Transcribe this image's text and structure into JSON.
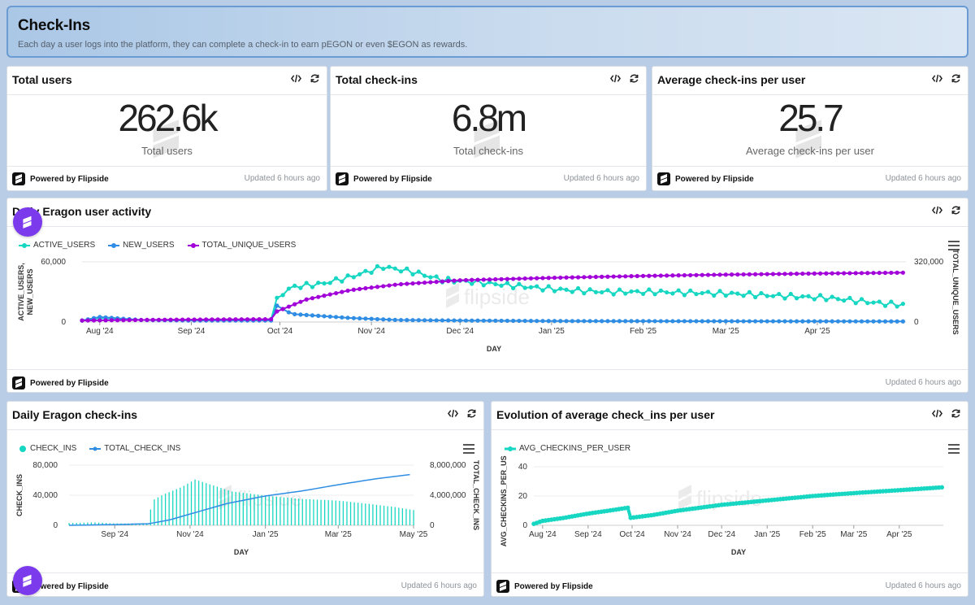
{
  "header": {
    "title": "Check-Ins",
    "subtitle": "Each day a user logs into the platform, they can complete a check-in to earn pEGON or even $EGON as rewards."
  },
  "footer": {
    "powered": "Powered by Flipside",
    "updated": "Updated 6 hours ago"
  },
  "stat_cards": [
    {
      "title": "Total users",
      "value": "262.6k",
      "label": "Total users"
    },
    {
      "title": "Total check-ins",
      "value": "6.8m",
      "label": "Total check-ins"
    },
    {
      "title": "Average check-ins per user",
      "value": "25.7",
      "label": "Average check-ins per user"
    }
  ],
  "activity": {
    "title": "Daily Eragon user activity"
  },
  "checkins": {
    "title": "Daily Eragon check-ins"
  },
  "avg": {
    "title": "Evolution of average check_ins per user"
  },
  "watermark": "flipside",
  "colors": {
    "teal": "#17d7c2",
    "blue": "#2f8de4",
    "purple": "#a100d9",
    "fab": "#7c3aed"
  },
  "chart_data": [
    {
      "type": "line",
      "title": "Daily Eragon user activity",
      "xlabel": "DAY",
      "ylabel": "ACTIVE_USERS, NEW_USERS",
      "ylabel_right": "TOTAL_UNIQUE_USERS",
      "x_ticks": [
        "Aug '24",
        "Sep '24",
        "Oct '24",
        "Nov '24",
        "Dec '24",
        "Jan '25",
        "Feb '25",
        "Mar '25",
        "Apr '25"
      ],
      "y_ticks_left": [
        "60,000",
        "0"
      ],
      "y_ticks_right": [
        "320,000",
        "0"
      ],
      "ylim_left": [
        0,
        60000
      ],
      "ylim_right": [
        0,
        320000
      ],
      "legend_position": "top-left",
      "series": [
        {
          "name": "ACTIVE_USERS",
          "axis": "left",
          "color": "#17d7c2",
          "x": [
            "2024-07-26",
            "2024-08-01",
            "2024-08-15",
            "2024-09-01",
            "2024-09-15",
            "2024-09-28",
            "2024-09-29",
            "2024-10-05",
            "2024-10-15",
            "2024-10-25",
            "2024-11-05",
            "2024-11-15",
            "2024-11-25",
            "2024-12-05",
            "2024-12-20",
            "2025-01-05",
            "2025-01-20",
            "2025-02-05",
            "2025-02-20",
            "2025-03-05",
            "2025-03-20",
            "2025-04-05",
            "2025-04-15",
            "2025-04-25",
            "2025-05-01"
          ],
          "values": [
            1500,
            4000,
            2000,
            1800,
            1800,
            2500,
            22000,
            35000,
            38000,
            45000,
            55000,
            50000,
            42000,
            40000,
            36000,
            32000,
            30000,
            30000,
            29000,
            28000,
            26000,
            24000,
            21000,
            18000,
            17000
          ]
        },
        {
          "name": "NEW_USERS",
          "axis": "left",
          "color": "#2f8de4",
          "x": [
            "2024-07-26",
            "2024-08-01",
            "2024-08-15",
            "2024-09-01",
            "2024-09-28",
            "2024-09-29",
            "2024-10-05",
            "2024-10-15",
            "2024-10-25",
            "2024-11-10",
            "2024-12-01",
            "2025-01-01",
            "2025-03-01",
            "2025-05-01"
          ],
          "values": [
            1500,
            5000,
            2000,
            1500,
            1500,
            18000,
            8000,
            6000,
            4000,
            2000,
            1500,
            1000,
            800,
            600
          ]
        },
        {
          "name": "TOTAL_UNIQUE_USERS",
          "axis": "right",
          "color": "#a100d9",
          "x": [
            "2024-07-26",
            "2024-08-15",
            "2024-09-01",
            "2024-09-28",
            "2024-09-29",
            "2024-10-10",
            "2024-10-25",
            "2024-11-10",
            "2024-12-01",
            "2025-01-01",
            "2025-02-01",
            "2025-03-01",
            "2025-04-01",
            "2025-05-01"
          ],
          "values": [
            8000,
            11000,
            13000,
            15000,
            50000,
            120000,
            170000,
            200000,
            222000,
            235000,
            245000,
            252000,
            258000,
            262600
          ]
        }
      ]
    },
    {
      "type": "bar",
      "title": "Daily Eragon check-ins",
      "xlabel": "DAY",
      "ylabel": "CHECK_INS",
      "ylabel_right": "TOTAL_CHECK_INS",
      "x_ticks": [
        "Sep '24",
        "Nov '24",
        "Jan '25",
        "Mar '25",
        "May '25"
      ],
      "y_ticks_left": [
        "80,000",
        "40,000",
        "0"
      ],
      "y_ticks_right": [
        "8,000,000",
        "4,000,000",
        "0"
      ],
      "ylim_left": [
        0,
        80000
      ],
      "ylim_right": [
        0,
        8000000
      ],
      "legend_position": "top-left",
      "series": [
        {
          "name": "CHECK_INS",
          "axis": "left",
          "type": "bar",
          "color": "#17d7c2",
          "x": [
            "2024-07-26",
            "2024-08-15",
            "2024-09-01",
            "2024-09-15",
            "2024-09-28",
            "2024-10-01",
            "2024-10-10",
            "2024-10-25",
            "2024-11-05",
            "2024-11-20",
            "2024-12-05",
            "2024-12-25",
            "2025-01-10",
            "2025-02-01",
            "2025-03-01",
            "2025-03-25",
            "2025-04-15",
            "2025-05-01"
          ],
          "values": [
            3000,
            4000,
            2500,
            2500,
            3000,
            30000,
            38000,
            48000,
            58000,
            50000,
            42000,
            38000,
            35000,
            32000,
            30000,
            26000,
            22000,
            18000
          ]
        },
        {
          "name": "TOTAL_CHECK_INS",
          "axis": "right",
          "type": "line",
          "color": "#2f8de4",
          "x": [
            "2024-07-26",
            "2024-09-01",
            "2024-09-28",
            "2024-10-15",
            "2024-11-01",
            "2024-12-01",
            "2025-01-01",
            "2025-02-01",
            "2025-03-01",
            "2025-04-01",
            "2025-05-01"
          ],
          "values": [
            0,
            100000,
            200000,
            700000,
            1500000,
            2900000,
            3900000,
            4600000,
            5400000,
            6200000,
            6800000
          ]
        }
      ]
    },
    {
      "type": "line",
      "title": "Evolution of average check_ins per user",
      "xlabel": "DAY",
      "ylabel": "AVG_CHECKINS_PER_USER",
      "x_ticks": [
        "Aug '24",
        "Sep '24",
        "Oct '24",
        "Nov '24",
        "Dec '24",
        "Jan '25",
        "Feb '25",
        "Mar '25",
        "Apr '25"
      ],
      "y_ticks": [
        "40",
        "20",
        "0"
      ],
      "ylim": [
        0,
        40
      ],
      "legend_position": "top-left",
      "series": [
        {
          "name": "AVG_CHECKINS_PER_USER",
          "color": "#17d7c2",
          "x": [
            "2024-07-26",
            "2024-08-01",
            "2024-08-15",
            "2024-09-01",
            "2024-09-15",
            "2024-09-28",
            "2024-09-29",
            "2024-10-15",
            "2024-11-01",
            "2024-12-01",
            "2025-01-01",
            "2025-02-01",
            "2025-03-01",
            "2025-04-01",
            "2025-05-01"
          ],
          "values": [
            1,
            3,
            5,
            8,
            10,
            12,
            5,
            7,
            10,
            14,
            17,
            20,
            22,
            24,
            26
          ]
        }
      ]
    }
  ]
}
